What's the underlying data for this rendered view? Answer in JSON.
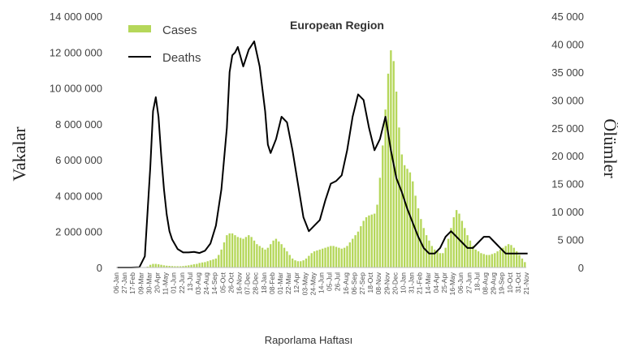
{
  "chart_data": {
    "type": "bar+line",
    "title": "European Region",
    "xlabel": "Raporlama Haftası",
    "ylabel_left": "Vakalar",
    "ylabel_right": "Ölümler",
    "ylim_left": [
      0,
      14000000
    ],
    "ylim_right": [
      0,
      45000
    ],
    "yticks_left": [
      0,
      2000000,
      4000000,
      6000000,
      8000000,
      10000000,
      12000000,
      14000000
    ],
    "ytick_labels_left": [
      "0",
      "2 000 000",
      "4 000 000",
      "6 000 000",
      "8 000 000",
      "10 000 000",
      "12 000 000",
      "14 000 000"
    ],
    "yticks_right": [
      0,
      5000,
      10000,
      15000,
      20000,
      25000,
      30000,
      35000,
      40000,
      45000
    ],
    "ytick_labels_right": [
      "0",
      "5 000",
      "10 000",
      "15 000",
      "20 000",
      "25 000",
      "30 000",
      "35 000",
      "40 000",
      "45 000"
    ],
    "x_tick_labels": [
      "06-Jan",
      "27-Jan",
      "17-Feb",
      "09-Mar",
      "30-Mar",
      "20-Apr",
      "11-May",
      "01-Jun",
      "22-Jun",
      "13-Jul",
      "03-Aug",
      "24-Aug",
      "14-Sep",
      "05-Oct",
      "26-Oct",
      "16-Nov",
      "07-Dec",
      "28-Dec",
      "18-Jan",
      "08-Feb",
      "01-Mar",
      "22-Mar",
      "12-Apr",
      "03-May",
      "24-May",
      "14-Jun",
      "05-Jul",
      "26-Jul",
      "16-Aug",
      "06-Sep",
      "27-Sep",
      "18-Oct",
      "08-Nov",
      "29-Nov",
      "20-Dec",
      "10-Jan",
      "31-Jan",
      "21-Feb",
      "14-Mar",
      "04-Apr",
      "25-Apr",
      "16-May",
      "06-Jun",
      "27-Jun",
      "18-Jul",
      "08-Aug",
      "29-Aug",
      "19-Sep",
      "10-Oct",
      "31-Oct",
      "21-Nov"
    ],
    "legend": {
      "position": "top-left",
      "entries": [
        "Cases",
        "Deaths"
      ]
    },
    "grid": false,
    "series": [
      {
        "name": "Cases",
        "type": "bar",
        "axis": "left",
        "color": "#b5d75a",
        "values": [
          0,
          0,
          0,
          0,
          0,
          0,
          0,
          0,
          0,
          0,
          10000,
          50000,
          150000,
          200000,
          200000,
          180000,
          150000,
          120000,
          100000,
          90000,
          80000,
          70000,
          70000,
          70000,
          80000,
          100000,
          120000,
          150000,
          180000,
          200000,
          250000,
          280000,
          300000,
          350000,
          400000,
          450000,
          500000,
          700000,
          1000000,
          1400000,
          1800000,
          1900000,
          1900000,
          1800000,
          1700000,
          1650000,
          1600000,
          1700000,
          1800000,
          1700000,
          1500000,
          1300000,
          1200000,
          1100000,
          1000000,
          1100000,
          1300000,
          1500000,
          1600000,
          1450000,
          1300000,
          1100000,
          900000,
          700000,
          500000,
          400000,
          350000,
          350000,
          400000,
          500000,
          650000,
          800000,
          900000,
          950000,
          1000000,
          1050000,
          1100000,
          1150000,
          1200000,
          1200000,
          1150000,
          1100000,
          1050000,
          1100000,
          1200000,
          1400000,
          1600000,
          1800000,
          2000000,
          2300000,
          2600000,
          2800000,
          2900000,
          2950000,
          3000000,
          3500000,
          5000000,
          6800000,
          8800000,
          10800000,
          12100000,
          11500000,
          9800000,
          7800000,
          6300000,
          5700000,
          5500000,
          5300000,
          4800000,
          4000000,
          3300000,
          2700000,
          2200000,
          1800000,
          1500000,
          1200000,
          1000000,
          900000,
          800000,
          800000,
          1100000,
          1600000,
          2200000,
          2800000,
          3200000,
          3000000,
          2600000,
          2200000,
          1800000,
          1500000,
          1200000,
          1000000,
          900000,
          800000,
          750000,
          700000,
          700000,
          750000,
          800000,
          900000,
          1000000,
          1100000,
          1200000,
          1300000,
          1250000,
          1100000,
          900000,
          700000,
          500000,
          300000
        ]
      },
      {
        "name": "Deaths",
        "type": "line",
        "axis": "right",
        "color": "#000000",
        "x": [
          0,
          5,
          8,
          10,
          12,
          13,
          14,
          15,
          16,
          17,
          18,
          19,
          20,
          22,
          24,
          26,
          28,
          30,
          32,
          34,
          36,
          38,
          40,
          41,
          42,
          43,
          44,
          46,
          48,
          50,
          52,
          54,
          55,
          56,
          58,
          60,
          62,
          64,
          66,
          68,
          70,
          72,
          74,
          76,
          78,
          80,
          82,
          84,
          86,
          88,
          90,
          92,
          94,
          96,
          98,
          100,
          102,
          104,
          106,
          108,
          110,
          112,
          114,
          116,
          118,
          120,
          122,
          124,
          126,
          128,
          130,
          132,
          134,
          136,
          138,
          140,
          142,
          144,
          146,
          148,
          150
        ],
        "values": [
          0,
          0,
          50,
          2000,
          18000,
          28000,
          30500,
          27000,
          20000,
          14000,
          9500,
          6500,
          5000,
          3300,
          2700,
          2700,
          2800,
          2600,
          3000,
          4300,
          7500,
          14000,
          25000,
          35000,
          38000,
          38500,
          39500,
          36000,
          39000,
          40500,
          36000,
          28000,
          22000,
          20500,
          23000,
          27000,
          26000,
          21000,
          15000,
          9000,
          6500,
          7500,
          8500,
          12000,
          15000,
          15500,
          16500,
          21000,
          27000,
          31000,
          30000,
          25000,
          21000,
          23000,
          27000,
          21000,
          16000,
          13500,
          10500,
          8000,
          5500,
          3500,
          2500,
          2500,
          3500,
          5500,
          6500,
          5500,
          4500,
          3500,
          3500,
          4500,
          5500,
          5500,
          4500,
          3500,
          2500,
          2500,
          2500,
          2500,
          2500
        ]
      }
    ]
  }
}
